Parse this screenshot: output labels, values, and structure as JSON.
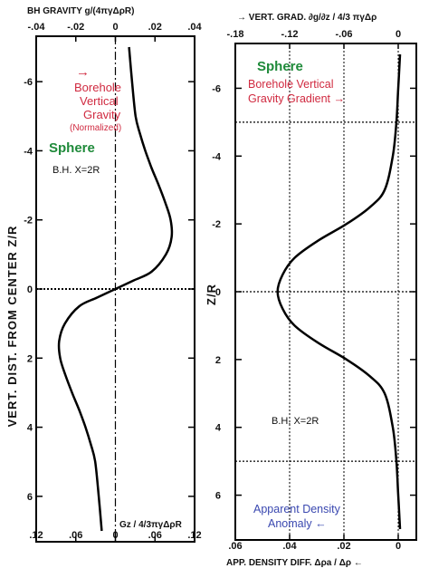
{
  "colors": {
    "red": "#d02a40",
    "green": "#1f8a3a",
    "blue": "#3a48b0",
    "curve": "#000000"
  },
  "chart_data": [
    {
      "type": "line",
      "panel": "left",
      "top_axis_title": "BH GRAVITY  g/(4πγΔρR)",
      "top_ticks": [
        "-.04",
        "-.02",
        "0",
        ".02",
        ".04"
      ],
      "top_xlim": [
        -0.04,
        0.04
      ],
      "bottom_axis_title": "Gz / 4/3πγΔρR",
      "bottom_ticks": [
        ".12",
        ".06",
        "0",
        ".06",
        ".12"
      ],
      "ylabel": "VERT. DIST. FROM CENTER  Z/R",
      "yticks": [
        "-6",
        "-4",
        "-2",
        "0",
        "2",
        "4",
        "6"
      ],
      "ylim": [
        -7,
        7
      ],
      "y_inverted": true,
      "dotted_hlines": [
        0
      ],
      "dashed_vlines": [
        0
      ],
      "series": [
        {
          "x": [
            0.0069,
            0.0084,
            0.0102,
            0.0124,
            0.0151,
            0.0183,
            0.0219,
            0.0252,
            0.0279,
            0.0284,
            0.0255,
            0.0183,
            0.0093,
            0.0,
            -0.0093,
            -0.0183,
            -0.0255,
            -0.0284,
            -0.0279,
            -0.0252,
            -0.0219,
            -0.0183,
            -0.0151,
            -0.0124,
            -0.0102,
            -0.0084,
            -0.0069
          ],
          "y": [
            -7,
            -6,
            -5,
            -4.5,
            -4,
            -3.5,
            -3,
            -2.5,
            -2,
            -1.5,
            -1,
            -0.5,
            -0.25,
            0,
            0.25,
            0.5,
            1,
            1.5,
            2,
            2.5,
            3,
            3.5,
            4,
            4.5,
            5,
            6,
            7
          ]
        }
      ],
      "annotations": [
        {
          "lines": [
            "→",
            "Borehole",
            "Vertical",
            "Gravity"
          ],
          "color": "red"
        },
        {
          "lines": [
            "(Normalized)"
          ],
          "color": "red"
        },
        {
          "lines": [
            "Sphere"
          ],
          "color": "green"
        },
        {
          "lines": [
            "B.H.  X=2R"
          ],
          "color": "black"
        }
      ]
    },
    {
      "type": "line",
      "panel": "right",
      "top_axis_title": "→ VERT. GRAD.  ∂g/∂z / 4/3 πγΔρ",
      "top_ticks": [
        "-.18",
        "-.12",
        "-.06",
        "0"
      ],
      "top_xlim": [
        -0.18,
        0.02
      ],
      "bottom_axis_title": "APP. DENSITY DIFF.  Δρa / Δρ  ←",
      "bottom_ticks": [
        ".06",
        ".04",
        ".02",
        "0"
      ],
      "ylabel": "Z/R",
      "yticks": [
        "-6",
        "-4",
        "-2",
        "0",
        "2",
        "4",
        "6"
      ],
      "ylim": [
        -7,
        7
      ],
      "y_inverted": true,
      "dotted_hlines": [
        -5,
        0,
        5
      ],
      "dotted_vlines": [
        -0.12,
        -0.06,
        0
      ],
      "series": [
        {
          "x": [
            0.002,
            0.0,
            -0.002,
            -0.006,
            -0.015,
            -0.031,
            -0.057,
            -0.089,
            -0.1145,
            -0.1278,
            -0.1333,
            -0.1278,
            -0.1145,
            -0.089,
            -0.057,
            -0.031,
            -0.015,
            -0.006,
            -0.002,
            0.0,
            0.002
          ],
          "y": [
            -7,
            -6,
            -5,
            -4,
            -3,
            -2.5,
            -2,
            -1.5,
            -1,
            -0.5,
            0,
            0.5,
            1,
            1.5,
            2,
            2.5,
            3,
            4,
            5,
            6,
            7
          ]
        }
      ],
      "annotations": [
        {
          "lines": [
            "Sphere"
          ],
          "color": "green"
        },
        {
          "lines": [
            "Borehole Vertical",
            "Gravity Gradient →"
          ],
          "color": "red"
        },
        {
          "lines": [
            "B.H.  X=2R"
          ],
          "color": "black"
        },
        {
          "lines": [
            "Apparent Density",
            "Anomaly ←"
          ],
          "color": "blue"
        }
      ]
    }
  ]
}
